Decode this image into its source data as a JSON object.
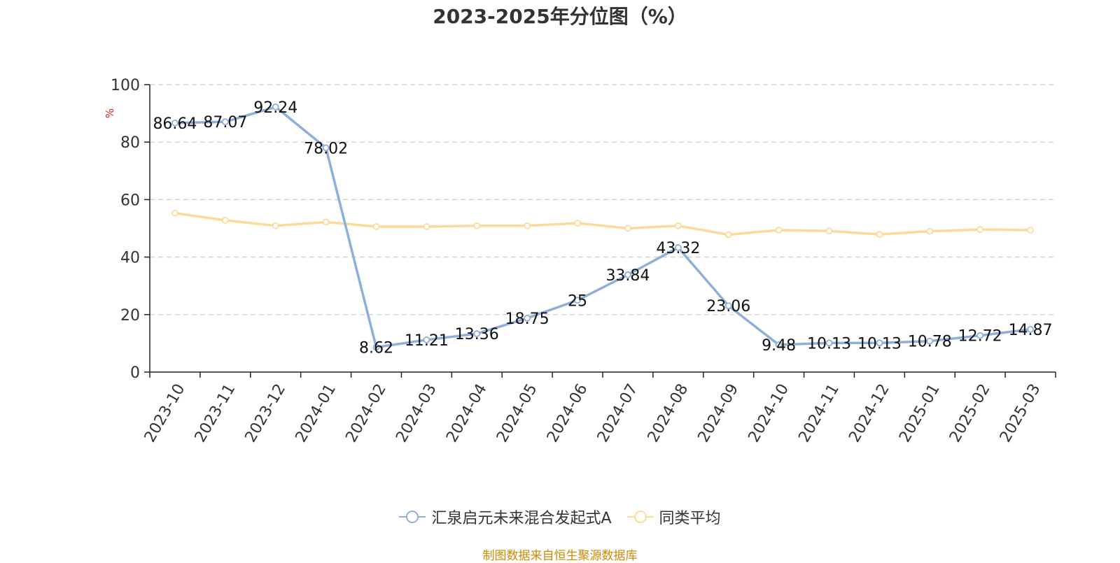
{
  "chart_data": {
    "type": "line",
    "title": "2023-2025年分位图（%）",
    "ylabel": "%",
    "xlabel": "",
    "ylim": [
      0,
      100
    ],
    "yticks": [
      0,
      20,
      40,
      60,
      80,
      100
    ],
    "grid": true,
    "legend_position": "bottom",
    "categories": [
      "2023-10",
      "2023-11",
      "2023-12",
      "2024-01",
      "2024-02",
      "2024-03",
      "2024-04",
      "2024-05",
      "2024-06",
      "2024-07",
      "2024-08",
      "2024-09",
      "2024-10",
      "2024-11",
      "2024-12",
      "2025-01",
      "2025-02",
      "2025-03"
    ],
    "series": [
      {
        "name": "汇泉启元未来混合发起式A",
        "color": "#8eaedb",
        "show_labels": true,
        "values": [
          86.64,
          87.07,
          92.24,
          78.02,
          8.62,
          11.21,
          13.36,
          18.75,
          25,
          33.84,
          43.32,
          23.06,
          9.48,
          10.13,
          10.13,
          10.78,
          12.72,
          14.87
        ],
        "labels": [
          "86.64",
          "87.07",
          "92.24",
          "78.02",
          "8.62",
          "11.21",
          "13.36",
          "18.75",
          "25",
          "33.84",
          "43.32",
          "23.06",
          "9.48",
          "10.13",
          "10.13",
          "10.78",
          "12.72",
          "14.87"
        ]
      },
      {
        "name": "同类平均",
        "color": "#fdd99a",
        "show_labels": false,
        "values": [
          55.3,
          52.8,
          50.9,
          52.2,
          50.6,
          50.6,
          50.9,
          50.9,
          51.8,
          50.0,
          50.9,
          47.8,
          49.4,
          49.1,
          47.9,
          49.0,
          49.6,
          49.4
        ]
      }
    ]
  },
  "source_note": "制图数据来自恒生聚源数据库",
  "colors": {
    "axis": "#222222",
    "grid": "#cccccc",
    "ylabel": "#e02020",
    "source": "#cc8a00"
  }
}
